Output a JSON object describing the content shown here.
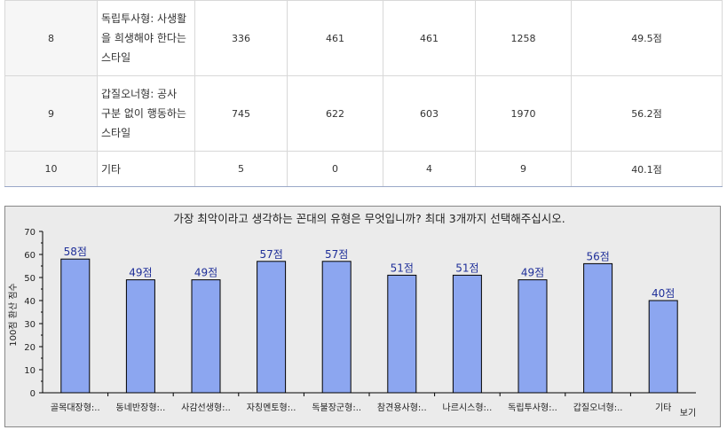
{
  "table": {
    "rows": [
      {
        "no": "8",
        "name_lines": [
          "독립투사형: 사생활",
          "을 희생해야 한다는",
          "스타일"
        ],
        "v1": "336",
        "v2": "461",
        "v3": "461",
        "total": "1258",
        "score": "49.5점"
      },
      {
        "no": "9",
        "name_lines": [
          "갑질오너형: 공사",
          "구분 없이 행동하는",
          "스타일"
        ],
        "v1": "745",
        "v2": "622",
        "v3": "603",
        "total": "1970",
        "score": "56.2점"
      },
      {
        "no": "10",
        "name_lines": [
          "기타"
        ],
        "v1": "5",
        "v2": "0",
        "v3": "4",
        "total": "9",
        "score": "40.1점"
      }
    ]
  },
  "chart_data": {
    "type": "bar",
    "title": "가장 최악이라고 생각하는 꼰대의 유형은 무엇입니까? 최대 3개까지 선택해주십시오.",
    "ylabel": "100점 환산 점수",
    "xlabel": "보기",
    "ylim": [
      0,
      70
    ],
    "yticks": [
      0,
      10,
      20,
      30,
      40,
      50,
      60,
      70
    ],
    "categories": [
      "골목대장형:..",
      "동네반장형:..",
      "사감선생형:..",
      "자칭멘토형:..",
      "독불장군형:..",
      "참견용사형:..",
      "나르시스형:..",
      "독립투사형:..",
      "갑질오너형:..",
      "기타"
    ],
    "values": [
      58,
      49,
      49,
      57,
      57,
      51,
      51,
      49,
      56,
      40
    ],
    "data_labels": [
      "58점",
      "49점",
      "49점",
      "57점",
      "57점",
      "51점",
      "51점",
      "49점",
      "56점",
      "40점"
    ],
    "grid": false,
    "bar_color": "#8ca6f0",
    "label_color": "#1f2f99"
  }
}
